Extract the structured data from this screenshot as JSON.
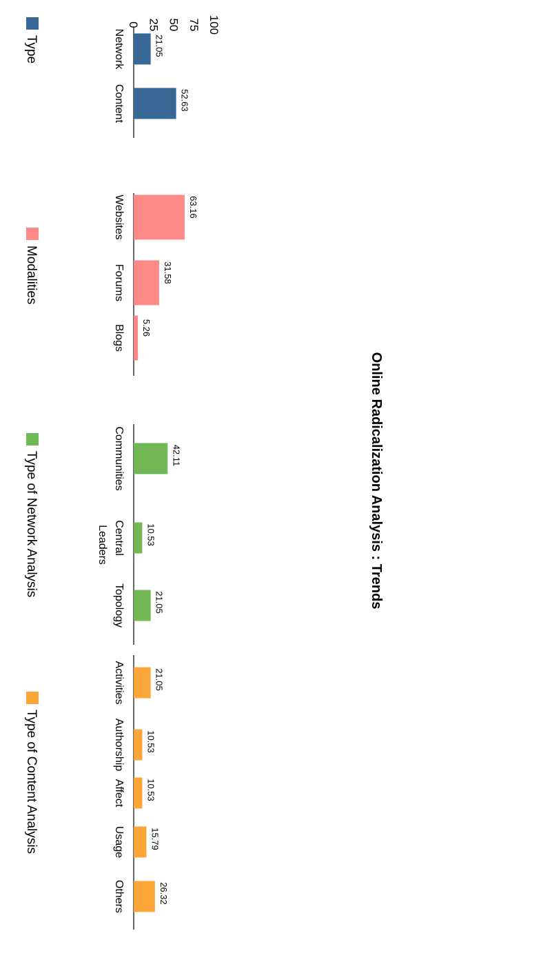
{
  "chart_data": {
    "type": "bar",
    "title": "Online Radicalization Analysis : Trends",
    "ylim": [
      0,
      100
    ],
    "yticks": [
      "0",
      "25",
      "50",
      "75",
      "100"
    ],
    "grid": false,
    "legend_position": "bottom",
    "groups": [
      {
        "name": "Type",
        "color": "#386895",
        "categories": [
          "Network",
          "Content"
        ],
        "values": [
          21.05,
          52.63
        ],
        "value_labels": [
          "21.05",
          "52.63"
        ]
      },
      {
        "name": "Modalities",
        "color": "#fd8a87",
        "categories": [
          "Websites",
          "Forums",
          "Blogs"
        ],
        "values": [
          63.16,
          31.58,
          5.26
        ],
        "value_labels": [
          "63.16",
          "31.58",
          "5.26"
        ]
      },
      {
        "name": "Type of Network Analysis",
        "color": "#72b956",
        "categories": [
          "Communities",
          "Central Leaders",
          "Topology"
        ],
        "category_lines": [
          [
            "Communities"
          ],
          [
            "Central",
            "Leaders"
          ],
          [
            "Topology"
          ]
        ],
        "values": [
          42.11,
          10.53,
          21.05
        ],
        "value_labels": [
          "42.11",
          "10.53",
          "21.05"
        ]
      },
      {
        "name": "Type of Content Analysis",
        "color": "#fca63a",
        "categories": [
          "Activities",
          "Authorship",
          "Affect",
          "Usage",
          "Others"
        ],
        "values": [
          21.05,
          10.53,
          10.53,
          15.79,
          26.32
        ],
        "value_labels": [
          "21.05",
          "10.53",
          "10.53",
          "15.79",
          "26.32"
        ]
      }
    ]
  }
}
